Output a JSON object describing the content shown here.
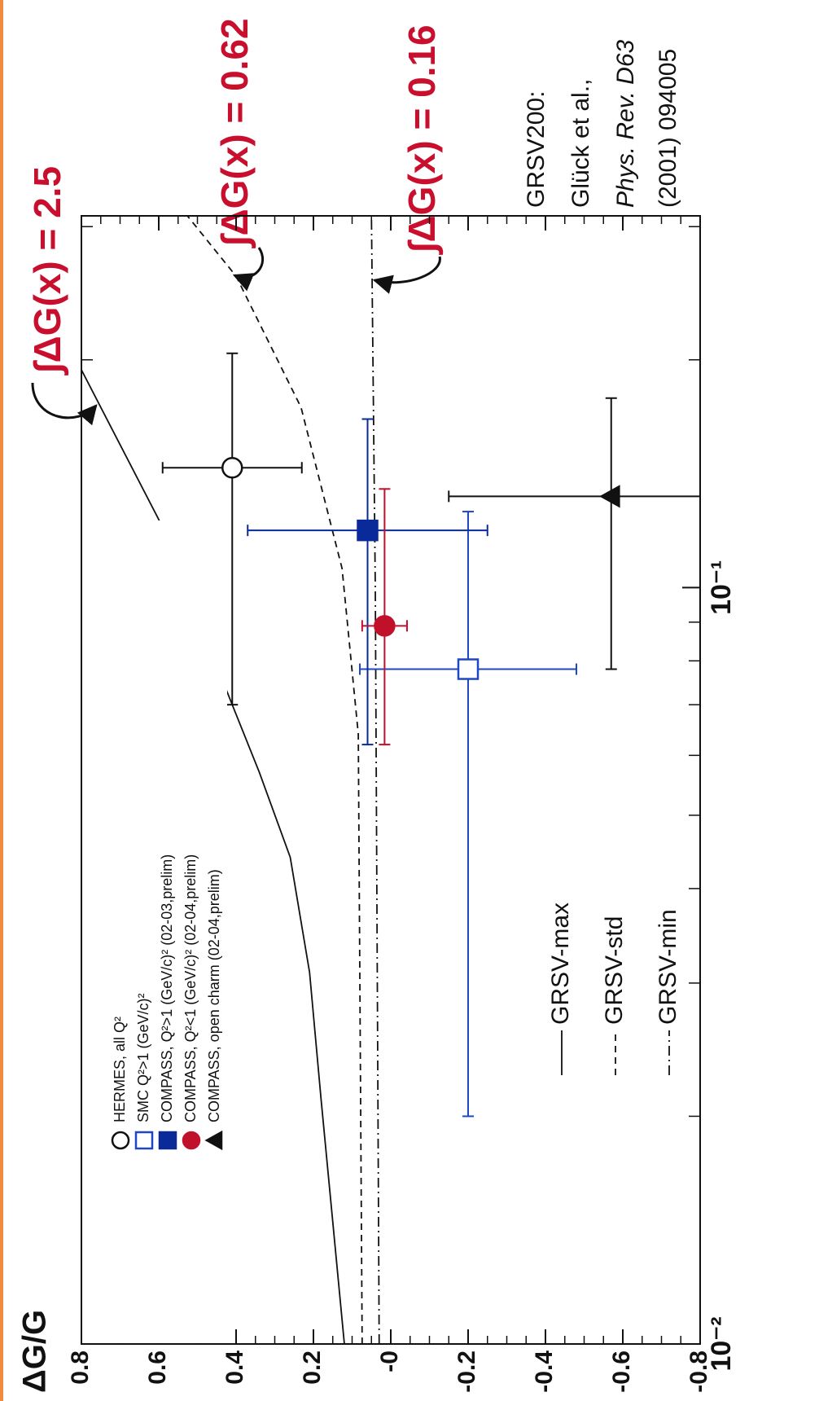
{
  "chart_data": {
    "type": "scatter",
    "y_label": "ΔG/G",
    "xlog": true,
    "xlim": [
      0.01,
      0.31
    ],
    "ylim": [
      -0.8,
      0.8
    ],
    "xticks": [
      {
        "value": 0.01,
        "label": "10⁻²"
      },
      {
        "value": 0.1,
        "label": "10⁻¹"
      }
    ],
    "xminor": [
      0.02,
      0.03,
      0.04,
      0.05,
      0.06,
      0.07,
      0.08,
      0.09,
      0.2,
      0.3
    ],
    "yticks": [
      0.8,
      0.6,
      0.4,
      0.2,
      {
        "value": 0,
        "label": "-0"
      },
      -0.2,
      -0.4,
      -0.6,
      -0.8
    ],
    "yminor_step": 0.05,
    "series": [
      {
        "name": "HERMES, all Q²",
        "color": "#111111",
        "marker": "circle",
        "filled": false,
        "x": [
          0.144
        ],
        "values": [
          0.41
        ],
        "errors": [
          0.18
        ],
        "x_ranges": [
          [
            0.07,
            0.204
          ]
        ]
      },
      {
        "name": "SMC Q²>1 (GeV/c)²",
        "color": "#1f47c4",
        "marker": "square",
        "filled": false,
        "x": [
          0.078
        ],
        "values": [
          -0.2
        ],
        "errors": [
          0.28
        ],
        "x_ranges": [
          [
            0.02,
            0.126
          ]
        ]
      },
      {
        "name": "COMPASS, Q²>1 (GeV/c)² (02-03,prelim)",
        "color": "#0b2a9a",
        "marker": "square",
        "filled": true,
        "x": [
          0.119
        ],
        "values": [
          0.06
        ],
        "errors": [
          0.31
        ],
        "x_ranges": [
          [
            0.062,
            0.167
          ]
        ]
      },
      {
        "name": "COMPASS, Q²<1 (GeV/c)² (02-04,prelim)",
        "color": "#c0102a",
        "marker": "circle",
        "filled": true,
        "x": [
          0.089
        ],
        "values": [
          0.016
        ],
        "errors": [
          0.058
        ],
        "x_ranges": [
          [
            0.062,
            0.135
          ]
        ]
      },
      {
        "name": "COMPASS, open charm (02-04,prelim)",
        "color": "#111111",
        "marker": "triangle",
        "filled": true,
        "x": [
          0.132
        ],
        "values": [
          -0.57
        ],
        "errors": [
          0.42
        ],
        "x_ranges": [
          [
            0.078,
            0.178
          ]
        ]
      }
    ],
    "curves": [
      {
        "name": "GRSV-max",
        "style": "solid",
        "x": [
          0.01,
          0.0145,
          0.021,
          0.031,
          0.044,
          0.057,
          0.07,
          0.123,
          0.194
        ],
        "values": [
          0.12,
          0.15,
          0.18,
          0.21,
          0.26,
          0.34,
          0.41,
          0.6,
          0.8
        ]
      },
      {
        "name": "GRSV-std",
        "style": "dashed",
        "x": [
          0.01,
          0.064,
          0.106,
          0.173,
          0.258,
          0.31
        ],
        "values": [
          0.074,
          0.084,
          0.126,
          0.232,
          0.4,
          0.526
        ]
      },
      {
        "name": "GRSV-min",
        "style": "dashdot",
        "x": [
          0.01,
          0.1,
          0.31
        ],
        "values": [
          0.03,
          0.04,
          0.05
        ]
      }
    ],
    "annotations": [
      "∫ΔG(x) = 2.5",
      "∫ΔG(x) = 0.62",
      "∫ΔG(x) = 0.16"
    ],
    "reference": [
      "GRSV200:",
      "Glück et al.,",
      "Phys. Rev. D63",
      "(2001) 094005"
    ]
  }
}
